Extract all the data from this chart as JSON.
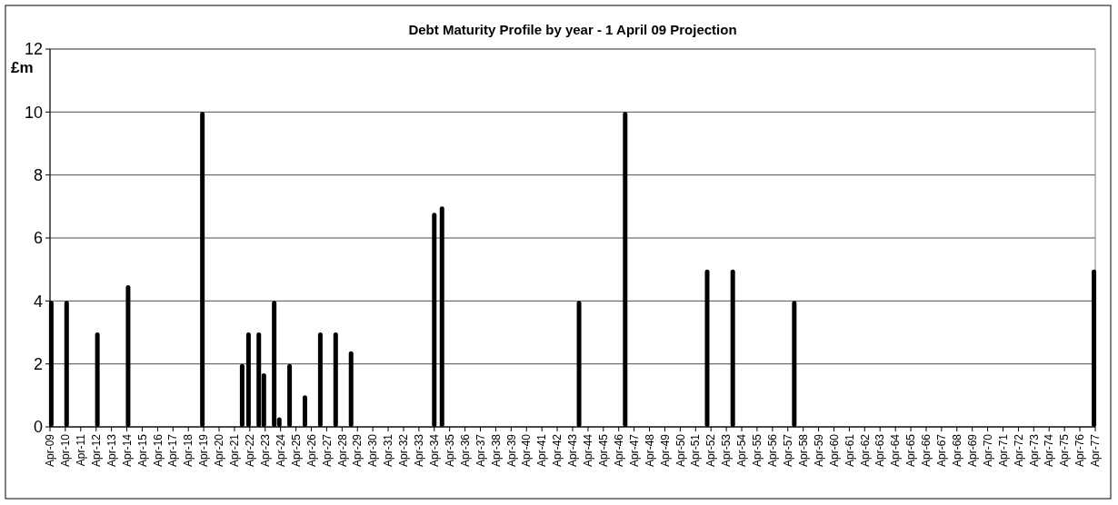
{
  "chart_data": {
    "type": "bar",
    "title": "Debt Maturity Profile by year -  1 April 09 Projection",
    "ylabel": "£m",
    "x": [
      "2009-05",
      "2010-05",
      "2012-05",
      "2014-05",
      "2019-03",
      "2021-10",
      "2022-03",
      "2022-11",
      "2023-03",
      "2023-11",
      "2024-03",
      "2024-11",
      "2025-11",
      "2026-11",
      "2027-11",
      "2028-11",
      "2034-04",
      "2034-10",
      "2043-09",
      "2046-09",
      "2052-01",
      "2053-09",
      "2057-09",
      "2077-03"
    ],
    "values": [
      4,
      4,
      3,
      4.5,
      10,
      2,
      3,
      3,
      1.7,
      4,
      0.3,
      2,
      1,
      3,
      3,
      2.4,
      6.8,
      7,
      4,
      10,
      5,
      5,
      4,
      5
    ],
    "color": "#000000",
    "ylim": [
      0,
      12
    ],
    "yticks": [
      0,
      2,
      4,
      6,
      8,
      10,
      12
    ],
    "xlim": [
      "2009-04",
      "2077-04"
    ],
    "xticks": [
      {
        "value": "2009-04",
        "label": "Apr-09"
      },
      {
        "value": "2010-04",
        "label": "Apr-10"
      },
      {
        "value": "2011-04",
        "label": "Apr-11"
      },
      {
        "value": "2012-04",
        "label": "Apr-12"
      },
      {
        "value": "2013-04",
        "label": "Apr-13"
      },
      {
        "value": "2014-04",
        "label": "Apr-14"
      },
      {
        "value": "2015-04",
        "label": "Apr-15"
      },
      {
        "value": "2016-04",
        "label": "Apr-16"
      },
      {
        "value": "2017-04",
        "label": "Apr-17"
      },
      {
        "value": "2018-04",
        "label": "Apr-18"
      },
      {
        "value": "2019-04",
        "label": "Apr-19"
      },
      {
        "value": "2020-04",
        "label": "Apr-20"
      },
      {
        "value": "2021-04",
        "label": "Apr-21"
      },
      {
        "value": "2022-04",
        "label": "Apr-22"
      },
      {
        "value": "2023-04",
        "label": "Apr-23"
      },
      {
        "value": "2024-04",
        "label": "Apr-24"
      },
      {
        "value": "2025-04",
        "label": "Apr-25"
      },
      {
        "value": "2026-04",
        "label": "Apr-26"
      },
      {
        "value": "2027-04",
        "label": "Apr-27"
      },
      {
        "value": "2028-04",
        "label": "Apr-28"
      },
      {
        "value": "2029-04",
        "label": "Apr-29"
      },
      {
        "value": "2030-04",
        "label": "Apr-30"
      },
      {
        "value": "2031-04",
        "label": "Apr-31"
      },
      {
        "value": "2032-04",
        "label": "Apr-32"
      },
      {
        "value": "2033-04",
        "label": "Apr-33"
      },
      {
        "value": "2034-04",
        "label": "Apr-34"
      },
      {
        "value": "2035-04",
        "label": "Apr-35"
      },
      {
        "value": "2036-04",
        "label": "Apr-36"
      },
      {
        "value": "2037-04",
        "label": "Apr-37"
      },
      {
        "value": "2038-04",
        "label": "Apr-38"
      },
      {
        "value": "2039-04",
        "label": "Apr-39"
      },
      {
        "value": "2040-04",
        "label": "Apr-40"
      },
      {
        "value": "2041-04",
        "label": "Apr-41"
      },
      {
        "value": "2042-04",
        "label": "Apr-42"
      },
      {
        "value": "2043-04",
        "label": "Apr-43"
      },
      {
        "value": "2044-04",
        "label": "Apr-44"
      },
      {
        "value": "2045-04",
        "label": "Apr-45"
      },
      {
        "value": "2046-04",
        "label": "Apr-46"
      },
      {
        "value": "2047-04",
        "label": "Apr-47"
      },
      {
        "value": "2048-04",
        "label": "Apr-48"
      },
      {
        "value": "2049-04",
        "label": "Apr-49"
      },
      {
        "value": "2050-04",
        "label": "Apr-50"
      },
      {
        "value": "2051-04",
        "label": "Apr-51"
      },
      {
        "value": "2052-04",
        "label": "Apr-52"
      },
      {
        "value": "2053-04",
        "label": "Apr-53"
      },
      {
        "value": "2054-04",
        "label": "Apr-54"
      },
      {
        "value": "2055-04",
        "label": "Apr-55"
      },
      {
        "value": "2056-04",
        "label": "Apr-56"
      },
      {
        "value": "2057-04",
        "label": "Apr-57"
      },
      {
        "value": "2058-04",
        "label": "Apr-58"
      },
      {
        "value": "2059-04",
        "label": "Apr-59"
      },
      {
        "value": "2060-04",
        "label": "Apr-60"
      },
      {
        "value": "2061-04",
        "label": "Apr-61"
      },
      {
        "value": "2062-04",
        "label": "Apr-62"
      },
      {
        "value": "2063-04",
        "label": "Apr-63"
      },
      {
        "value": "2064-04",
        "label": "Apr-64"
      },
      {
        "value": "2065-04",
        "label": "Apr-65"
      },
      {
        "value": "2066-04",
        "label": "Apr-66"
      },
      {
        "value": "2067-04",
        "label": "Apr-67"
      },
      {
        "value": "2068-04",
        "label": "Apr-68"
      },
      {
        "value": "2069-04",
        "label": "Apr-69"
      },
      {
        "value": "2070-04",
        "label": "Apr-70"
      },
      {
        "value": "2071-04",
        "label": "Apr-71"
      },
      {
        "value": "2072-04",
        "label": "Apr-72"
      },
      {
        "value": "2073-04",
        "label": "Apr-73"
      },
      {
        "value": "2074-04",
        "label": "Apr-74"
      },
      {
        "value": "2075-04",
        "label": "Apr-75"
      },
      {
        "value": "2076-04",
        "label": "Apr-76"
      },
      {
        "value": "2077-04",
        "label": "Apr-77"
      }
    ],
    "grid": "y"
  }
}
